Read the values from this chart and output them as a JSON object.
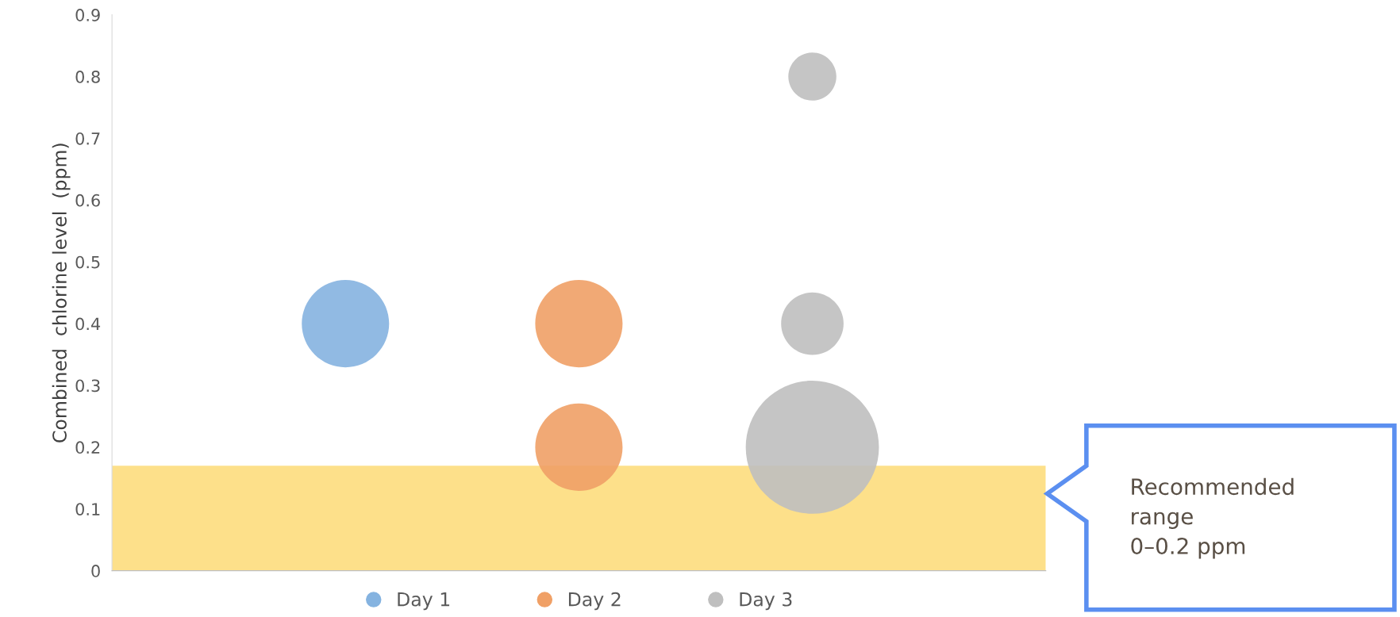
{
  "chart_data": {
    "type": "bubble",
    "ylabel": "Combined  chlorine level  (ppm)",
    "categories": [
      null,
      null,
      null
    ],
    "ylim": [
      0,
      0.9
    ],
    "yticks": [
      0,
      0.1,
      0.2,
      0.3,
      0.4,
      0.5,
      0.6,
      0.7,
      0.8,
      0.9
    ],
    "tick_labels": "y",
    "grid": false,
    "legend": "bottom",
    "marker": "circle",
    "series": [
      {
        "name": "Day 1",
        "color": "#85b3e0",
        "values": [
          0.4,
          null,
          null
        ],
        "sizes": [
          0.43,
          null,
          null
        ]
      },
      {
        "name": "Day 2",
        "color": "#f0a066",
        "values": [
          null,
          0.4,
          null
        ],
        "sizes": [
          null,
          0.43,
          null
        ]
      },
      {
        "color": "#f0a066",
        "values": [
          null,
          0.2,
          null
        ],
        "sizes": [
          null,
          0.43,
          null
        ]
      },
      {
        "name": "Day 3",
        "color": "#bfbfbf",
        "values": [
          null,
          null,
          0.8
        ],
        "sizes": [
          null,
          null,
          0.13
        ]
      },
      {
        "color": "#bfbfbf",
        "values": [
          null,
          null,
          0.4
        ],
        "sizes": [
          null,
          null,
          0.22
        ]
      },
      {
        "color": "#bfbfbf",
        "values": [
          null,
          null,
          0.2
        ],
        "sizes": [
          null,
          null,
          1
        ]
      }
    ],
    "bands": [
      {
        "axis": "y",
        "from": 0,
        "to": 0.17,
        "color": "#fde08a"
      }
    ],
    "annotations": [
      "Recommended\nrange\n0–0.2 ppm"
    ]
  }
}
